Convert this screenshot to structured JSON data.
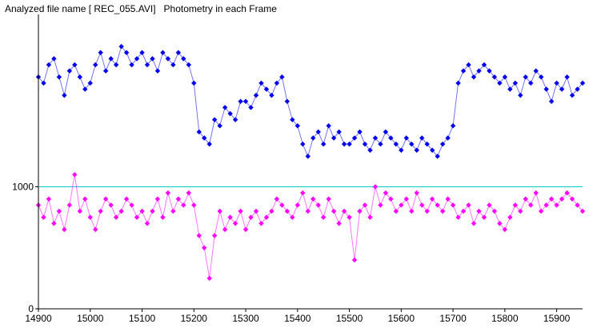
{
  "header": {
    "title": "Analyzed file name [ REC_055.AVI]   Photometry in each Frame"
  },
  "chart_data": {
    "type": "scatter",
    "title": "Analyzed file name [ REC_055.AVI]   Photometry in each Frame",
    "xlabel": "",
    "ylabel": "",
    "xlim": [
      14900,
      15950
    ],
    "ylim": [
      0,
      2400
    ],
    "x_ticks": [
      14900,
      15000,
      15100,
      15200,
      15300,
      15400,
      15500,
      15600,
      15700,
      15800,
      15900
    ],
    "y_ticks": [
      0,
      1000
    ],
    "reference_line": {
      "y": 1000,
      "color": "#00cccc"
    },
    "grid": false,
    "legend": "none",
    "series": [
      {
        "color": "#0000ee",
        "marker": "diamond",
        "x": [
          14900,
          14910,
          14920,
          14930,
          14940,
          14950,
          14960,
          14970,
          14980,
          14990,
          15000,
          15010,
          15020,
          15030,
          15040,
          15050,
          15060,
          15070,
          15080,
          15090,
          15100,
          15110,
          15120,
          15130,
          15140,
          15150,
          15160,
          15170,
          15180,
          15190,
          15200,
          15210,
          15220,
          15230,
          15240,
          15250,
          15260,
          15270,
          15280,
          15290,
          15300,
          15310,
          15320,
          15330,
          15340,
          15350,
          15360,
          15370,
          15380,
          15390,
          15400,
          15410,
          15420,
          15430,
          15440,
          15450,
          15460,
          15470,
          15480,
          15490,
          15500,
          15510,
          15520,
          15530,
          15540,
          15550,
          15560,
          15570,
          15580,
          15590,
          15600,
          15610,
          15620,
          15630,
          15640,
          15650,
          15660,
          15670,
          15680,
          15690,
          15700,
          15710,
          15720,
          15730,
          15740,
          15750,
          15760,
          15770,
          15780,
          15790,
          15800,
          15810,
          15820,
          15830,
          15840,
          15850,
          15860,
          15870,
          15880,
          15890,
          15900,
          15910,
          15920,
          15930,
          15940,
          15950
        ],
        "y": [
          1900,
          1850,
          2000,
          2050,
          1900,
          1750,
          1950,
          2000,
          1900,
          1800,
          1850,
          2000,
          2100,
          1950,
          2050,
          2000,
          2150,
          2100,
          2000,
          2050,
          2100,
          2000,
          2050,
          1950,
          2100,
          2050,
          2000,
          2100,
          2050,
          2000,
          1850,
          1450,
          1400,
          1350,
          1550,
          1500,
          1650,
          1600,
          1550,
          1700,
          1700,
          1650,
          1750,
          1850,
          1800,
          1750,
          1850,
          1900,
          1700,
          1550,
          1500,
          1350,
          1250,
          1400,
          1450,
          1350,
          1500,
          1400,
          1450,
          1350,
          1350,
          1400,
          1450,
          1350,
          1300,
          1400,
          1350,
          1450,
          1400,
          1350,
          1300,
          1400,
          1350,
          1300,
          1400,
          1350,
          1300,
          1250,
          1350,
          1400,
          1500,
          1850,
          1950,
          2000,
          1900,
          1950,
          2000,
          1950,
          1900,
          1850,
          1900,
          1800,
          1850,
          1750,
          1900,
          1850,
          1950,
          1900,
          1800,
          1700,
          1850,
          1800,
          1900,
          1750,
          1800,
          1850
        ]
      },
      {
        "color": "#ff00ff",
        "marker": "diamond",
        "x": [
          14900,
          14910,
          14920,
          14930,
          14940,
          14950,
          14960,
          14970,
          14980,
          14990,
          15000,
          15010,
          15020,
          15030,
          15040,
          15050,
          15060,
          15070,
          15080,
          15090,
          15100,
          15110,
          15120,
          15130,
          15140,
          15150,
          15160,
          15170,
          15180,
          15190,
          15200,
          15210,
          15220,
          15230,
          15240,
          15250,
          15260,
          15270,
          15280,
          15290,
          15300,
          15310,
          15320,
          15330,
          15340,
          15350,
          15360,
          15370,
          15380,
          15390,
          15400,
          15410,
          15420,
          15430,
          15440,
          15450,
          15460,
          15470,
          15480,
          15490,
          15500,
          15510,
          15520,
          15530,
          15540,
          15550,
          15560,
          15570,
          15580,
          15590,
          15600,
          15610,
          15620,
          15630,
          15640,
          15650,
          15660,
          15670,
          15680,
          15690,
          15700,
          15710,
          15720,
          15730,
          15740,
          15750,
          15760,
          15770,
          15780,
          15790,
          15800,
          15810,
          15820,
          15830,
          15840,
          15850,
          15860,
          15870,
          15880,
          15890,
          15900,
          15910,
          15920,
          15930,
          15940,
          15950
        ],
        "y": [
          850,
          750,
          900,
          700,
          800,
          650,
          850,
          1100,
          800,
          900,
          750,
          650,
          800,
          900,
          850,
          750,
          800,
          900,
          850,
          750,
          800,
          700,
          800,
          900,
          750,
          950,
          800,
          900,
          850,
          950,
          850,
          600,
          500,
          250,
          600,
          800,
          650,
          750,
          700,
          800,
          650,
          750,
          800,
          700,
          750,
          800,
          900,
          850,
          800,
          750,
          850,
          950,
          800,
          900,
          850,
          750,
          900,
          800,
          700,
          800,
          750,
          400,
          800,
          850,
          750,
          1000,
          850,
          950,
          900,
          800,
          850,
          900,
          800,
          950,
          850,
          800,
          900,
          850,
          800,
          900,
          850,
          750,
          800,
          850,
          700,
          800,
          750,
          850,
          800,
          700,
          650,
          750,
          850,
          800,
          900,
          850,
          950,
          800,
          850,
          900,
          850,
          900,
          950,
          900,
          850,
          800
        ]
      }
    ]
  }
}
